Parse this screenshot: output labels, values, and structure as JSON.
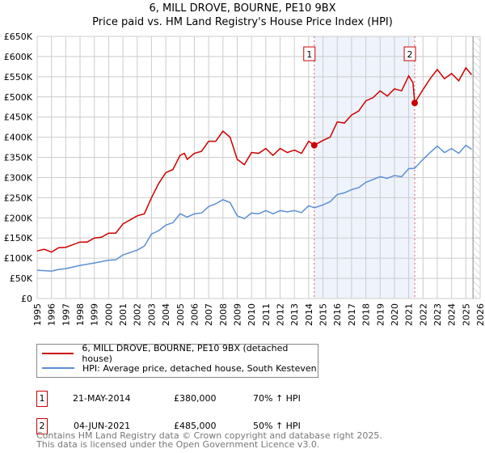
{
  "title": "6, MILL DROVE, BOURNE, PE10 9BX",
  "subtitle": "Price paid vs. HM Land Registry's House Price Index (HPI)",
  "chart_data": {
    "type": "line",
    "title": "6, MILL DROVE, BOURNE, PE10 9BX",
    "subtitle": "Price paid vs. HM Land Registry's House Price Index (HPI)",
    "xlim": [
      1995,
      2026
    ],
    "ylim": [
      0,
      650000
    ],
    "yticks": [
      0,
      50000,
      100000,
      150000,
      200000,
      250000,
      300000,
      350000,
      400000,
      450000,
      500000,
      550000,
      600000,
      650000
    ],
    "ytick_labels": [
      "£0",
      "£50K",
      "£100K",
      "£150K",
      "£200K",
      "£250K",
      "£300K",
      "£350K",
      "£400K",
      "£450K",
      "£500K",
      "£550K",
      "£600K",
      "£650K"
    ],
    "xticks": [
      1995,
      1996,
      1997,
      1998,
      1999,
      2000,
      2001,
      2002,
      2003,
      2004,
      2005,
      2006,
      2007,
      2008,
      2009,
      2010,
      2011,
      2012,
      2013,
      2014,
      2015,
      2016,
      2017,
      2018,
      2019,
      2020,
      2021,
      2022,
      2023,
      2024,
      2025,
      2026
    ],
    "grid": true,
    "shaded_range": [
      2014.39,
      2021.42
    ],
    "forecast_hatch_from": 2025.5,
    "series": [
      {
        "name": "6, MILL DROVE, BOURNE, PE10 9BX (detached house)",
        "color": "#cc0000",
        "x": [
          1995,
          1995.5,
          1996,
          1996.5,
          1997,
          1998,
          1998.5,
          1999,
          1999.5,
          2000,
          2000.5,
          2001,
          2002,
          2002.5,
          2003,
          2003.5,
          2004,
          2004.5,
          2005,
          2005.3,
          2005.5,
          2006,
          2006.5,
          2007,
          2007.5,
          2008,
          2008.5,
          2009,
          2009.5,
          2010,
          2010.5,
          2011,
          2011.5,
          2012,
          2012.5,
          2013,
          2013.5,
          2014,
          2014.39,
          2015,
          2015.5,
          2016,
          2016.5,
          2017,
          2017.5,
          2018,
          2018.5,
          2019,
          2019.5,
          2020,
          2020.5,
          2021,
          2021.3,
          2021.42,
          2022,
          2022.5,
          2023,
          2023.5,
          2024,
          2024.5,
          2025,
          2025.4
        ],
        "y": [
          118000,
          122000,
          115000,
          126000,
          127000,
          140000,
          140000,
          150000,
          152000,
          162000,
          162000,
          185000,
          205000,
          210000,
          250000,
          285000,
          312000,
          320000,
          355000,
          360000,
          345000,
          360000,
          365000,
          390000,
          390000,
          415000,
          400000,
          345000,
          332000,
          362000,
          360000,
          372000,
          355000,
          372000,
          362000,
          368000,
          360000,
          390000,
          380000,
          392000,
          400000,
          438000,
          435000,
          455000,
          465000,
          490000,
          498000,
          515000,
          502000,
          520000,
          515000,
          552000,
          535000,
          485000,
          518000,
          545000,
          568000,
          545000,
          558000,
          540000,
          572000,
          555000
        ]
      },
      {
        "name": "HPI: Average price, detached house, South Kesteven",
        "color": "#5b8fd4",
        "x": [
          1995,
          1996,
          1996.5,
          1997,
          1998,
          1999,
          2000,
          2000.5,
          2001,
          2002,
          2002.5,
          2003,
          2003.5,
          2004,
          2004.5,
          2005,
          2005.5,
          2006,
          2006.5,
          2007,
          2007.5,
          2008,
          2008.5,
          2009,
          2009.5,
          2010,
          2010.5,
          2011,
          2011.5,
          2012,
          2012.5,
          2013,
          2013.5,
          2014,
          2014.39,
          2015,
          2015.5,
          2016,
          2016.5,
          2017,
          2017.5,
          2018,
          2018.5,
          2019,
          2019.5,
          2020,
          2020.5,
          2021,
          2021.42,
          2022,
          2022.5,
          2023,
          2023.5,
          2024,
          2024.5,
          2025,
          2025.4
        ],
        "y": [
          70000,
          68000,
          72000,
          74000,
          82000,
          88000,
          95000,
          96000,
          108000,
          120000,
          130000,
          160000,
          168000,
          182000,
          188000,
          210000,
          202000,
          210000,
          212000,
          228000,
          235000,
          245000,
          238000,
          205000,
          198000,
          212000,
          210000,
          218000,
          210000,
          218000,
          215000,
          218000,
          213000,
          230000,
          225000,
          232000,
          240000,
          258000,
          262000,
          270000,
          275000,
          288000,
          295000,
          302000,
          298000,
          305000,
          302000,
          322000,
          323000,
          345000,
          362000,
          378000,
          362000,
          372000,
          360000,
          380000,
          370000
        ]
      }
    ],
    "annotations": [
      {
        "label": "1",
        "x": 2014.39,
        "y": 380000
      },
      {
        "label": "2",
        "x": 2021.42,
        "y": 485000
      }
    ],
    "legend": "below"
  },
  "transactions": [
    {
      "num": "1",
      "date": "21-MAY-2014",
      "price": "£380,000",
      "hpi": "70% ↑ HPI"
    },
    {
      "num": "2",
      "date": "04-JUN-2021",
      "price": "£485,000",
      "hpi": "50% ↑ HPI"
    }
  ],
  "footer": {
    "line1": "Contains HM Land Registry data © Crown copyright and database right 2025.",
    "line2": "This data is licensed under the Open Government Licence v3.0."
  }
}
